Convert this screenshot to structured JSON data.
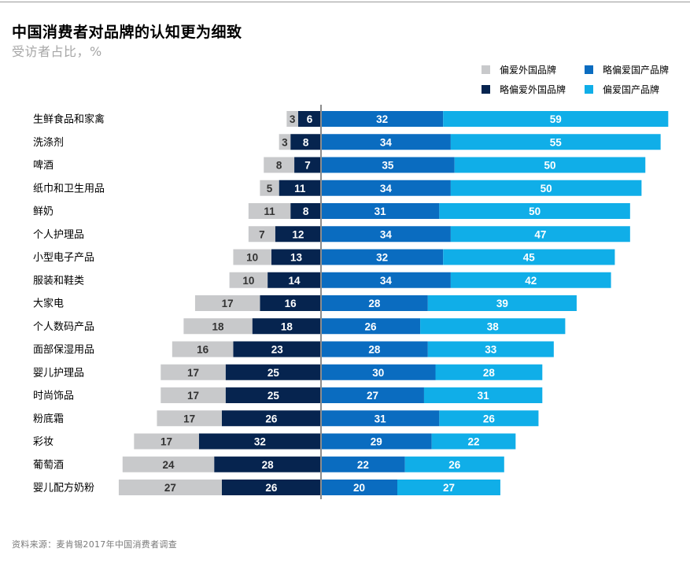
{
  "header": {
    "title": "中国消费者对品牌的认知更为细致",
    "subtitle": "受访者占比，%"
  },
  "legend": [
    {
      "key": "strong_foreign",
      "label": "偏爱外国品牌",
      "color": "#c8c9cb"
    },
    {
      "key": "slight_domestic",
      "label": "略偏爱国产品牌",
      "color": "#0a6cc0"
    },
    {
      "key": "slight_foreign",
      "label": "略偏爱外国品牌",
      "color": "#06244f"
    },
    {
      "key": "strong_domestic",
      "label": "偏爱国产品牌",
      "color": "#10aee8"
    }
  ],
  "source": "资料来源：麦肯锡2017年中国消费者调查",
  "chart_data": {
    "type": "bar",
    "orientation": "horizontal",
    "stacking": "diverging",
    "categories": [
      "生鲜食品和家禽",
      "洗涤剂",
      "啤酒",
      "纸巾和卫生用品",
      "鲜奶",
      "个人护理品",
      "小型电子产品",
      "服装和鞋类",
      "大家电",
      "个人数码产品",
      "面部保湿用品",
      "婴儿护理品",
      "时尚饰品",
      "粉底霜",
      "彩妆",
      "葡萄酒",
      "婴儿配方奶粉"
    ],
    "series": [
      {
        "name": "偏爱外国品牌",
        "color": "#c8c9cb",
        "side": "left-outer",
        "values": [
          3,
          3,
          8,
          5,
          11,
          7,
          10,
          10,
          17,
          18,
          16,
          17,
          17,
          17,
          17,
          24,
          27
        ]
      },
      {
        "name": "略偏爱外国品牌",
        "color": "#06244f",
        "side": "left-inner",
        "values": [
          6,
          8,
          7,
          11,
          8,
          12,
          13,
          14,
          16,
          18,
          23,
          25,
          25,
          26,
          32,
          28,
          26
        ]
      },
      {
        "name": "略偏爱国产品牌",
        "color": "#0a6cc0",
        "side": "right-inner",
        "values": [
          32,
          34,
          35,
          34,
          31,
          34,
          32,
          34,
          28,
          26,
          28,
          30,
          27,
          31,
          29,
          22,
          20
        ]
      },
      {
        "name": "偏爱国产品牌",
        "color": "#10aee8",
        "side": "right-outer",
        "values": [
          59,
          55,
          50,
          50,
          50,
          47,
          45,
          42,
          39,
          38,
          33,
          28,
          31,
          26,
          22,
          26,
          27
        ]
      }
    ],
    "center_line_color": "#8c8c8c",
    "grid": false,
    "legend_position": "top-right",
    "xlabel": "",
    "ylabel": ""
  }
}
